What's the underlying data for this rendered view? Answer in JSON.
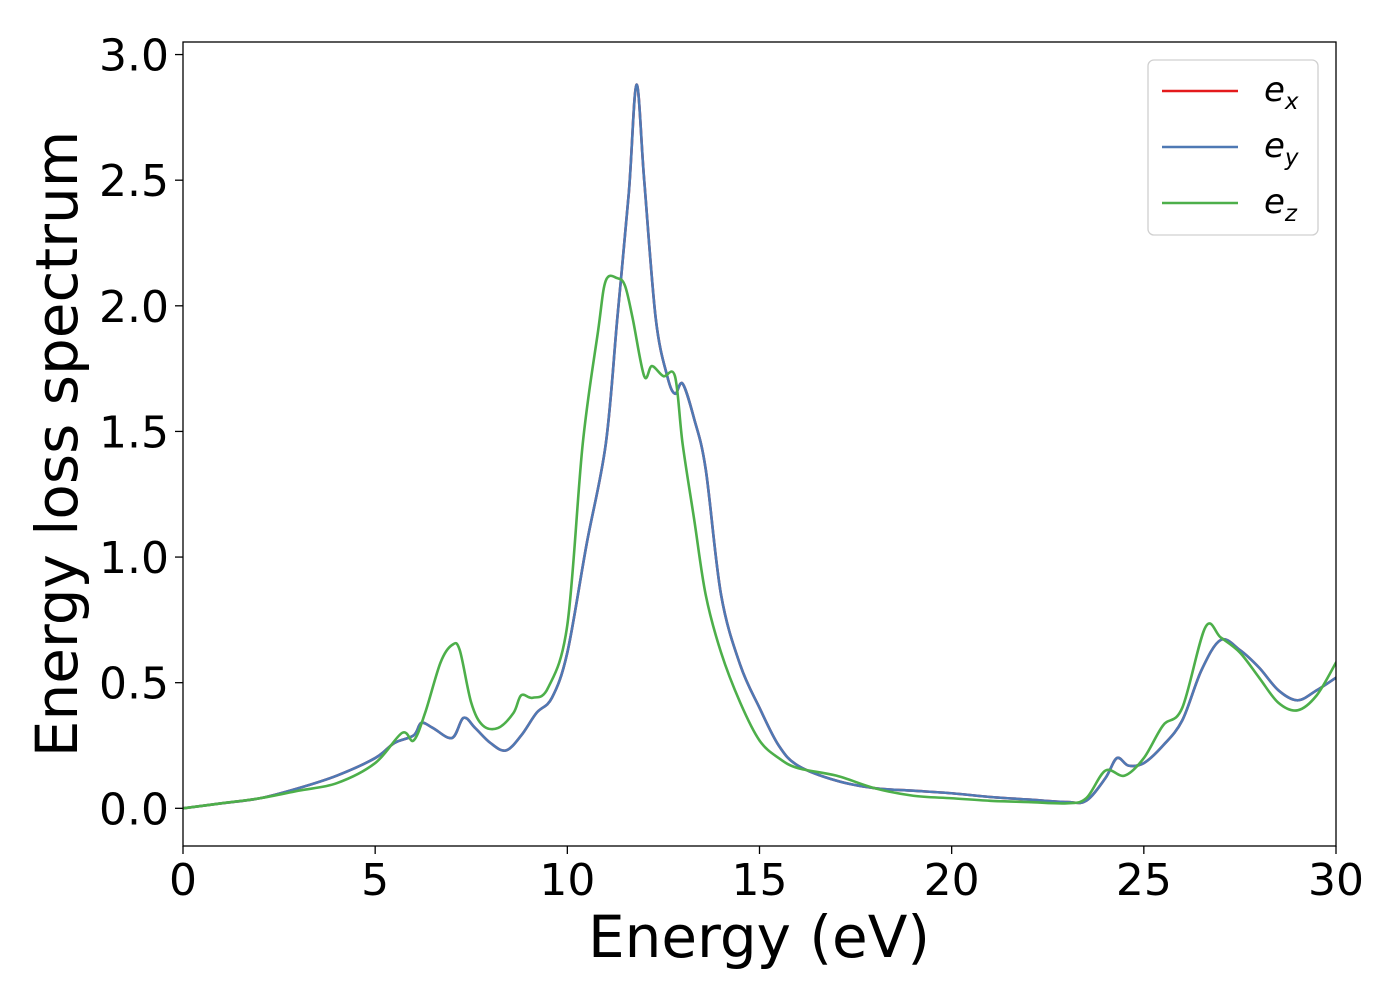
{
  "chart_data": {
    "type": "line",
    "xlabel": "Energy (eV)",
    "ylabel": "Energy loss spectrum",
    "xlim": [
      0,
      30
    ],
    "ylim": [
      -0.15,
      3.05
    ],
    "xticks": [
      0,
      5,
      10,
      15,
      20,
      25,
      30
    ],
    "xtick_labels": [
      "0",
      "5",
      "10",
      "15",
      "20",
      "25",
      "30"
    ],
    "yticks": [
      0.0,
      0.5,
      1.0,
      1.5,
      2.0,
      2.5,
      3.0
    ],
    "ytick_labels": [
      "0.0",
      "0.5",
      "1.0",
      "1.5",
      "2.0",
      "2.5",
      "3.0"
    ],
    "grid": false,
    "legend_position": "top-right",
    "series": [
      {
        "name": "e_x",
        "label_base": "e",
        "label_sub": "x",
        "color": "#e41a1c",
        "x": [
          0,
          1,
          2,
          3,
          4,
          5,
          5.5,
          6,
          6.2,
          6.5,
          7,
          7.3,
          7.6,
          8,
          8.4,
          8.8,
          9.2,
          9.6,
          10,
          10.5,
          11,
          11.3,
          11.6,
          11.8,
          12,
          12.3,
          12.6,
          12.8,
          13,
          13.3,
          13.6,
          14,
          14.5,
          15,
          15.5,
          16,
          17,
          18,
          19,
          20,
          21,
          22,
          23,
          23.5,
          24,
          24.3,
          24.6,
          25,
          25.5,
          26,
          26.5,
          27,
          27.5,
          28,
          28.5,
          29,
          29.5,
          30
        ],
        "y": [
          0.0,
          0.02,
          0.04,
          0.08,
          0.13,
          0.2,
          0.26,
          0.29,
          0.34,
          0.32,
          0.28,
          0.36,
          0.32,
          0.26,
          0.23,
          0.29,
          0.38,
          0.44,
          0.62,
          1.05,
          1.45,
          1.95,
          2.45,
          2.88,
          2.5,
          1.95,
          1.72,
          1.65,
          1.69,
          1.55,
          1.35,
          0.85,
          0.57,
          0.4,
          0.25,
          0.17,
          0.11,
          0.08,
          0.07,
          0.06,
          0.045,
          0.035,
          0.025,
          0.03,
          0.12,
          0.2,
          0.17,
          0.18,
          0.25,
          0.35,
          0.55,
          0.67,
          0.63,
          0.56,
          0.47,
          0.43,
          0.47,
          0.52
        ]
      },
      {
        "name": "e_y",
        "label_base": "e",
        "label_sub": "y",
        "color": "#4e79b4",
        "x": [
          0,
          1,
          2,
          3,
          4,
          5,
          5.5,
          6,
          6.2,
          6.5,
          7,
          7.3,
          7.6,
          8,
          8.4,
          8.8,
          9.2,
          9.6,
          10,
          10.5,
          11,
          11.3,
          11.6,
          11.8,
          12,
          12.3,
          12.6,
          12.8,
          13,
          13.3,
          13.6,
          14,
          14.5,
          15,
          15.5,
          16,
          17,
          18,
          19,
          20,
          21,
          22,
          23,
          23.5,
          24,
          24.3,
          24.6,
          25,
          25.5,
          26,
          26.5,
          27,
          27.5,
          28,
          28.5,
          29,
          29.5,
          30
        ],
        "y": [
          0.0,
          0.02,
          0.04,
          0.08,
          0.13,
          0.2,
          0.26,
          0.29,
          0.34,
          0.32,
          0.28,
          0.36,
          0.32,
          0.26,
          0.23,
          0.29,
          0.38,
          0.44,
          0.62,
          1.05,
          1.45,
          1.95,
          2.45,
          2.88,
          2.5,
          1.95,
          1.72,
          1.65,
          1.69,
          1.55,
          1.35,
          0.85,
          0.57,
          0.4,
          0.25,
          0.17,
          0.11,
          0.08,
          0.07,
          0.06,
          0.045,
          0.035,
          0.025,
          0.03,
          0.12,
          0.2,
          0.17,
          0.18,
          0.25,
          0.35,
          0.55,
          0.67,
          0.63,
          0.56,
          0.47,
          0.43,
          0.47,
          0.52
        ]
      },
      {
        "name": "e_z",
        "label_base": "e",
        "label_sub": "z",
        "color": "#4daf4a",
        "x": [
          0,
          1,
          2,
          3,
          4,
          5,
          5.7,
          6,
          6.3,
          6.7,
          7,
          7.2,
          7.5,
          7.8,
          8.2,
          8.6,
          8.8,
          9.1,
          9.5,
          10,
          10.4,
          10.8,
          11,
          11.3,
          11.5,
          11.7,
          12,
          12.2,
          12.5,
          12.8,
          13,
          13.3,
          13.6,
          14,
          14.5,
          15,
          15.5,
          16,
          17,
          18,
          19,
          20,
          21,
          22,
          23,
          23.5,
          24,
          24.5,
          25,
          25.5,
          26,
          26.6,
          27,
          27.5,
          28,
          28.5,
          29,
          29.5,
          30
        ],
        "y": [
          0.0,
          0.02,
          0.04,
          0.07,
          0.1,
          0.18,
          0.3,
          0.27,
          0.38,
          0.58,
          0.65,
          0.63,
          0.42,
          0.33,
          0.32,
          0.38,
          0.45,
          0.44,
          0.48,
          0.73,
          1.45,
          1.9,
          2.1,
          2.11,
          2.08,
          1.95,
          1.72,
          1.76,
          1.72,
          1.72,
          1.45,
          1.15,
          0.85,
          0.62,
          0.42,
          0.27,
          0.2,
          0.16,
          0.13,
          0.08,
          0.05,
          0.04,
          0.03,
          0.025,
          0.02,
          0.04,
          0.15,
          0.13,
          0.2,
          0.33,
          0.4,
          0.72,
          0.68,
          0.62,
          0.52,
          0.42,
          0.39,
          0.45,
          0.58
        ]
      }
    ]
  }
}
